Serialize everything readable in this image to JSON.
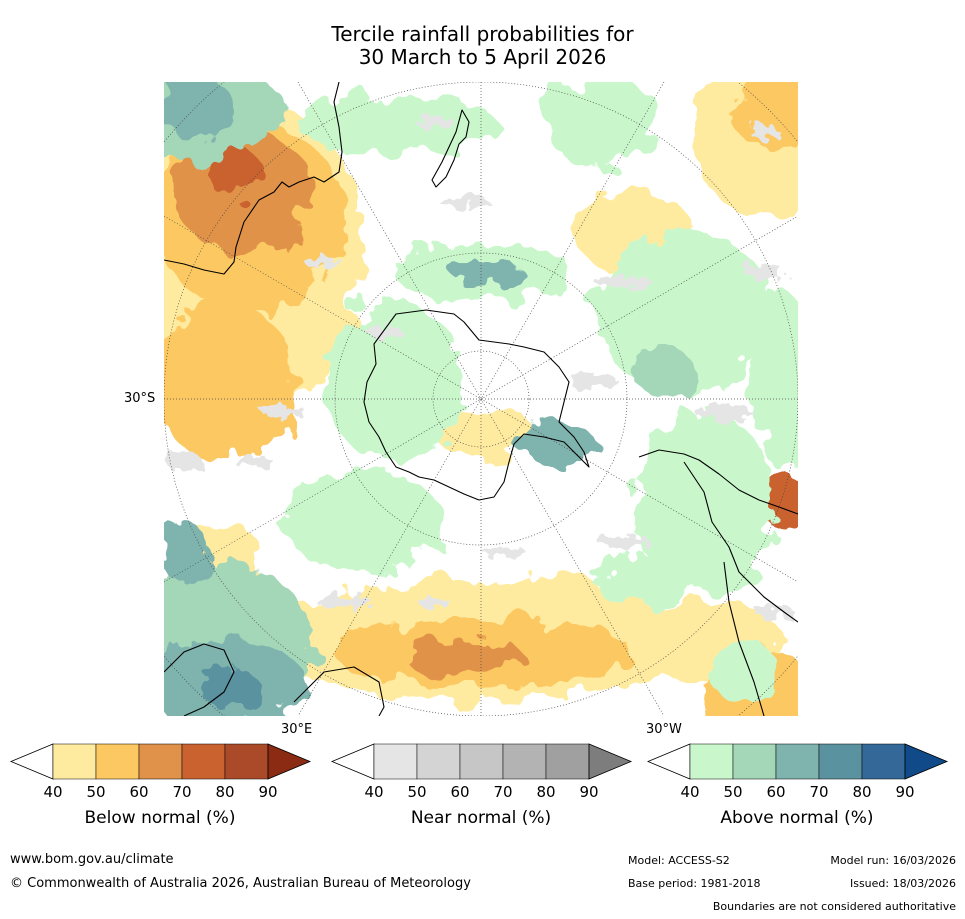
{
  "title": {
    "line1": "Tercile rainfall probabilities for",
    "line2": "30 March to 5 April 2026"
  },
  "map": {
    "projection": "south-polar-stereographic",
    "labels": {
      "lat": "30°S",
      "lon_east": "30°E",
      "lon_west": "30°W"
    },
    "colors": {
      "land_outline": "#000000",
      "graticule": "#444444",
      "background": "#ffffff"
    }
  },
  "colorbars": [
    {
      "id": "below",
      "label": "Below normal (%)",
      "ticks": [
        "40",
        "50",
        "60",
        "70",
        "80",
        "90"
      ],
      "colors": [
        "#ffffff",
        "#ffeb9f",
        "#fcc862",
        "#e0924a",
        "#c9622f",
        "#aa4a28",
        "#8b2b14"
      ]
    },
    {
      "id": "near",
      "label": "Near normal (%)",
      "ticks": [
        "40",
        "50",
        "60",
        "70",
        "80",
        "90"
      ],
      "colors": [
        "#ffffff",
        "#e5e5e5",
        "#d4d4d4",
        "#c6c6c6",
        "#b3b3b3",
        "#a0a0a0",
        "#7d7d7d"
      ]
    },
    {
      "id": "above",
      "label": "Above normal (%)",
      "ticks": [
        "40",
        "50",
        "60",
        "70",
        "80",
        "90"
      ],
      "colors": [
        "#ffffff",
        "#c9f7cb",
        "#a4d6b8",
        "#7fb4ae",
        "#5a92a0",
        "#336898",
        "#104a88"
      ]
    }
  ],
  "footer": {
    "url": "www.bom.gov.au/climate",
    "copyright": "© Commonwealth of Australia 2026, Australian Bureau of Meteorology",
    "model": "Model: ACCESS-S2",
    "model_run": "Model run: 16/03/2026",
    "base_period": "Base period: 1981-2018",
    "issued": "Issued: 18/03/2026",
    "disclaimer": "Boundaries are not considered authoritative"
  }
}
